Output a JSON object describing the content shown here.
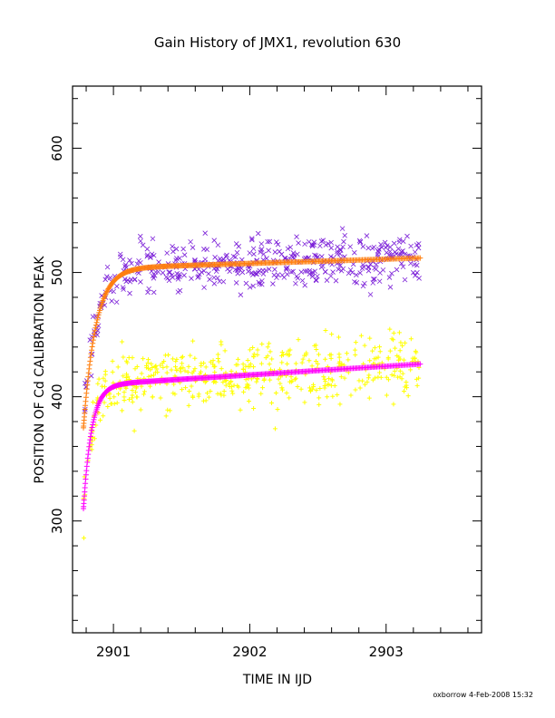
{
  "chart_data": {
    "type": "scatter",
    "title": "Gain History of JMX1, revolution 630",
    "xlabel": "TIME IN IJD",
    "ylabel": "POSITION OF Cd CALIBRATION PEAK",
    "xlim": [
      2900.7,
      2903.7
    ],
    "ylim": [
      210,
      650
    ],
    "x_ticks": [
      2901,
      2902,
      2903
    ],
    "y_ticks": [
      300,
      400,
      500,
      600
    ],
    "grid": false,
    "legend": "none",
    "series": [
      {
        "color": "#7b1fd8",
        "marker": "x",
        "x_range": [
          2900.78,
          2903.25
        ],
        "trend": {
          "start": 380,
          "plateau": 503,
          "slope_per_day": 3.5,
          "rise_time": 0.09
        },
        "scatter_sd": 10,
        "points_per_day": 185
      },
      {
        "color": "#ff7f0e",
        "marker": "+",
        "x_range": [
          2900.78,
          2903.25
        ],
        "trend": {
          "start": 375,
          "plateau": 503,
          "slope_per_day": 3.5,
          "rise_time": 0.09
        }
      },
      {
        "color": "#ffff00",
        "marker": "+",
        "x_range": [
          2900.78,
          2903.25
        ],
        "trend": {
          "start": 310,
          "plateau": 409,
          "slope_per_day": 7,
          "rise_time": 0.06
        },
        "scatter_sd": 12,
        "points_per_day": 200
      },
      {
        "color": "#ff00ff",
        "marker": "+",
        "x_range": [
          2900.78,
          2903.25
        ],
        "trend": {
          "start": 310,
          "plateau": 409,
          "slope_per_day": 7,
          "rise_time": 0.06
        }
      }
    ]
  },
  "footer": "oxborrow  4-Feb-2008 15:32"
}
